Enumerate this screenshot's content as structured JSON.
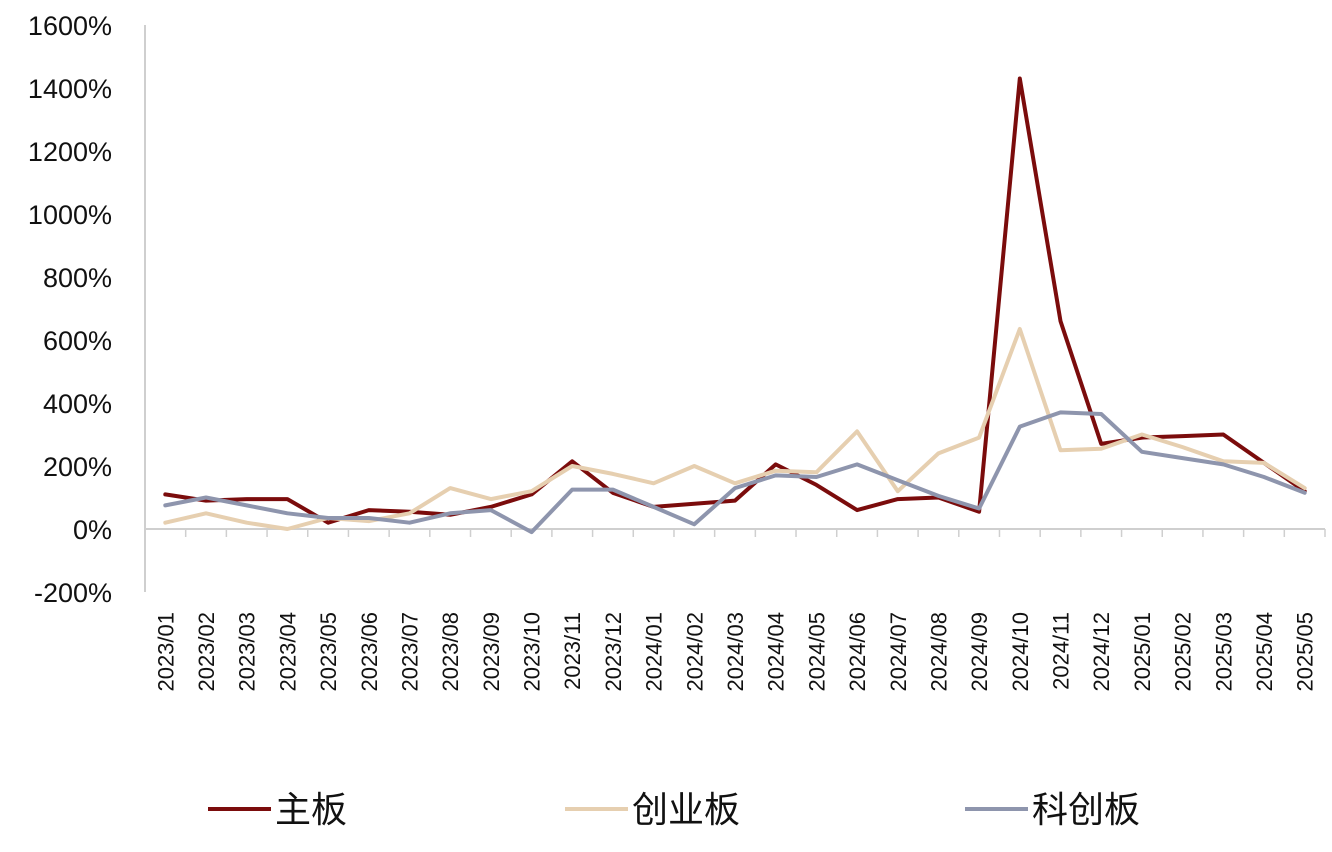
{
  "chart_data": {
    "type": "line",
    "title": "",
    "xlabel": "",
    "ylabel": "",
    "ylim": [
      -200,
      1600
    ],
    "yticks": [
      -200,
      0,
      200,
      400,
      600,
      800,
      1000,
      1200,
      1400,
      1600
    ],
    "ytick_labels": [
      "-200%",
      "0%",
      "200%",
      "400%",
      "600%",
      "800%",
      "1000%",
      "1200%",
      "1400%",
      "1600%"
    ],
    "categories": [
      "2023/01",
      "2023/02",
      "2023/03",
      "2023/04",
      "2023/05",
      "2023/06",
      "2023/07",
      "2023/08",
      "2023/09",
      "2023/10",
      "2023/11",
      "2023/12",
      "2024/01",
      "2024/02",
      "2024/03",
      "2024/04",
      "2024/05",
      "2024/06",
      "2024/07",
      "2024/08",
      "2024/09",
      "2024/10",
      "2024/11",
      "2024/12",
      "2025/01",
      "2025/02",
      "2025/03",
      "2025/04",
      "2025/05"
    ],
    "grid": false,
    "legend_position": "bottom",
    "series": [
      {
        "name": "主板",
        "color": "#7b0c0c",
        "values": [
          110,
          90,
          95,
          95,
          20,
          60,
          55,
          45,
          70,
          110,
          215,
          115,
          70,
          80,
          90,
          205,
          140,
          60,
          95,
          100,
          55,
          1430,
          660,
          270,
          290,
          295,
          300,
          210,
          120
        ]
      },
      {
        "name": "创业板",
        "color": "#e6cfb0",
        "values": [
          20,
          50,
          20,
          0,
          35,
          25,
          50,
          130,
          95,
          120,
          200,
          175,
          145,
          200,
          145,
          185,
          180,
          310,
          120,
          240,
          290,
          635,
          250,
          255,
          300,
          260,
          215,
          210,
          130
        ]
      },
      {
        "name": "科创板",
        "color": "#8e95ad",
        "values": [
          75,
          100,
          75,
          50,
          35,
          35,
          20,
          50,
          60,
          -10,
          125,
          125,
          70,
          15,
          130,
          170,
          165,
          205,
          155,
          105,
          65,
          325,
          370,
          365,
          245,
          225,
          205,
          165,
          115
        ]
      }
    ]
  }
}
